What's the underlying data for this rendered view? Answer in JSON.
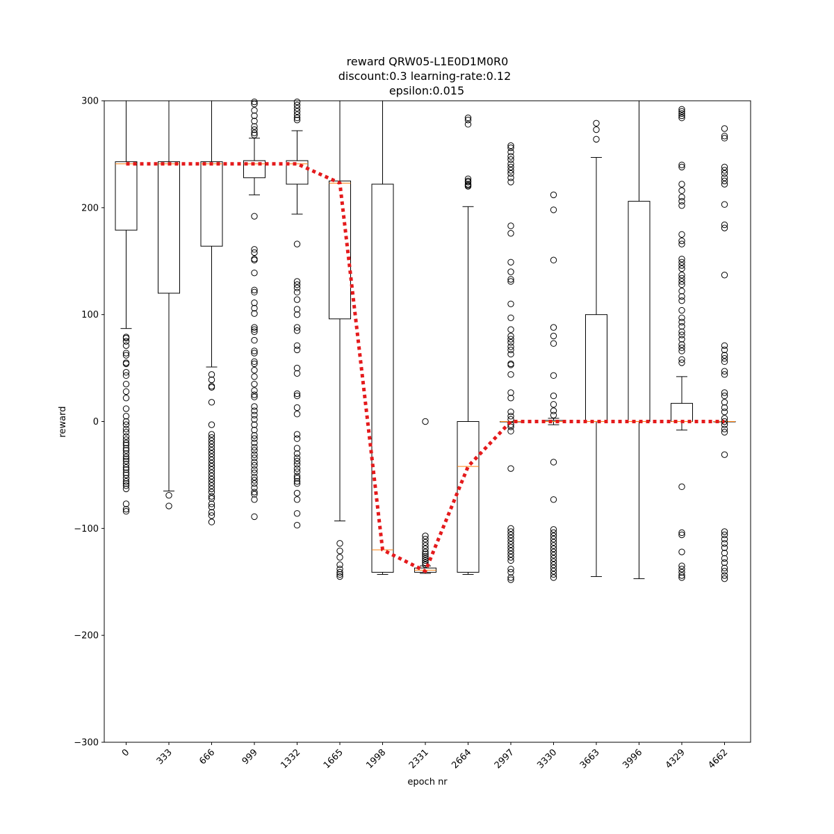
{
  "chart_data": {
    "type": "box",
    "title_lines": [
      "reward QRW05-L1E0D1M0R0",
      "discount:0.3 learning-rate:0.12",
      "epsilon:0.015"
    ],
    "xlabel": "epoch nr",
    "ylabel": "reward",
    "ylim": [
      -300,
      300
    ],
    "yticks": [
      -300,
      -200,
      -100,
      0,
      100,
      200,
      300
    ],
    "grid": false,
    "colors": {
      "box": "#000000",
      "median": "#ff7f0e",
      "mean_line": "#e41a1c"
    },
    "categories": [
      "0",
      "333",
      "666",
      "999",
      "1332",
      "1665",
      "1998",
      "2331",
      "2664",
      "2997",
      "3330",
      "3663",
      "3996",
      "4329",
      "4662"
    ],
    "boxes": [
      {
        "x": "0",
        "whisker_low": 87,
        "q1": 179,
        "median": 241,
        "q3": 243,
        "whisker_high": 300,
        "outliers": [
          79,
          78,
          75,
          71,
          64,
          62,
          55,
          54,
          46,
          43,
          35,
          28,
          22,
          12,
          5,
          0,
          -3,
          -7,
          -10,
          -14,
          -17,
          -20,
          -22,
          -25,
          -27,
          -30,
          -33,
          -35,
          -37,
          -40,
          -43,
          -45,
          -48,
          -50,
          -53,
          -56,
          -58,
          -60,
          -63,
          -77,
          -82,
          -84
        ]
      },
      {
        "x": "333",
        "whisker_low": -65,
        "q1": 120,
        "median": 241,
        "q3": 243,
        "whisker_high": 300,
        "outliers": [
          -69,
          -79
        ]
      },
      {
        "x": "666",
        "whisker_low": 51,
        "q1": 164,
        "median": 241,
        "q3": 243,
        "whisker_high": 300,
        "outliers": [
          44,
          39,
          33,
          32,
          18,
          -3,
          -12,
          -15,
          -18,
          -21,
          -24,
          -27,
          -30,
          -33,
          -36,
          -39,
          -42,
          -45,
          -48,
          -51,
          -54,
          -57,
          -60,
          -63,
          -66,
          -70,
          -72,
          -77,
          -80,
          -85,
          -88,
          -94
        ]
      },
      {
        "x": "999",
        "whisker_low": 212,
        "q1": 228,
        "median": 241,
        "q3": 244,
        "whisker_high": 265,
        "outliers": [
          299,
          297,
          291,
          286,
          281,
          276,
          273,
          270,
          268,
          192,
          161,
          158,
          152,
          151,
          139,
          123,
          121,
          111,
          106,
          101,
          88,
          86,
          84,
          76,
          66,
          64,
          56,
          54,
          48,
          42,
          35,
          29,
          25,
          23,
          14,
          10,
          6,
          2,
          -3,
          -8,
          -13,
          -16,
          -20,
          -24,
          -27,
          -31,
          -34,
          -38,
          -41,
          -45,
          -48,
          -52,
          -55,
          -58,
          -62,
          -66,
          -68,
          -73,
          -89
        ]
      },
      {
        "x": "1332",
        "whisker_low": 194,
        "q1": 222,
        "median": 241,
        "q3": 244,
        "whisker_high": 272,
        "outliers": [
          299,
          296,
          293,
          290,
          287,
          284,
          282,
          166,
          131,
          128,
          125,
          121,
          114,
          105,
          100,
          88,
          85,
          71,
          67,
          50,
          45,
          26,
          24,
          13,
          7,
          -12,
          -16,
          -25,
          -30,
          -34,
          -37,
          -40,
          -44,
          -47,
          -51,
          -53,
          -56,
          -58,
          -67,
          -73,
          -86,
          -97
        ]
      },
      {
        "x": "1665",
        "whisker_low": -93,
        "q1": 96,
        "median": 223,
        "q3": 225,
        "whisker_high": 300,
        "outliers": [
          -114,
          -121,
          -127,
          -134,
          -138,
          -141,
          -143,
          -145
        ]
      },
      {
        "x": "1998",
        "whisker_low": -143,
        "q1": -141,
        "median": -120,
        "q3": 222,
        "whisker_high": 300,
        "outliers": []
      },
      {
        "x": "2331",
        "whisker_low": -142,
        "q1": -141,
        "median": -139,
        "q3": -137,
        "whisker_high": -135,
        "outliers": [
          0,
          -107,
          -110,
          -113,
          -116,
          -119,
          -122,
          -124,
          -126,
          -128,
          -130,
          -132,
          -134
        ]
      },
      {
        "x": "2664",
        "whisker_low": -143,
        "q1": -141,
        "median": -42,
        "q3": 0,
        "whisker_high": 201,
        "outliers": [
          284,
          282,
          278,
          227,
          225,
          224,
          222,
          221,
          220
        ]
      },
      {
        "x": "2997",
        "whisker_low": 0,
        "q1": 0,
        "median": 0,
        "q3": 0,
        "whisker_high": 0,
        "outliers": [
          258,
          256,
          252,
          248,
          245,
          241,
          238,
          235,
          232,
          228,
          224,
          183,
          176,
          149,
          140,
          133,
          131,
          110,
          97,
          86,
          80,
          77,
          74,
          70,
          67,
          63,
          54,
          53,
          44,
          27,
          22,
          9,
          5,
          2,
          -3,
          -5,
          -9,
          -44,
          -100,
          -103,
          -106,
          -109,
          -112,
          -115,
          -118,
          -121,
          -124,
          -127,
          -130,
          -138,
          -141,
          -146,
          -148
        ]
      },
      {
        "x": "3330",
        "whisker_low": -3,
        "q1": 0,
        "median": 0,
        "q3": 1,
        "whisker_high": 3,
        "outliers": [
          212,
          198,
          151,
          88,
          80,
          73,
          43,
          24,
          16,
          10,
          6,
          -38,
          -73,
          -101,
          -104,
          -107,
          -110,
          -113,
          -116,
          -119,
          -122,
          -125,
          -128,
          -131,
          -134,
          -137,
          -140,
          -143,
          -146
        ]
      },
      {
        "x": "3663",
        "whisker_low": -145,
        "q1": 0,
        "median": 0,
        "q3": 100,
        "whisker_high": 247,
        "outliers": [
          279,
          273,
          264
        ]
      },
      {
        "x": "3996",
        "whisker_low": -147,
        "q1": 0,
        "median": 0,
        "q3": 206,
        "whisker_high": 300,
        "outliers": []
      },
      {
        "x": "4329",
        "whisker_low": -8,
        "q1": 0,
        "median": 0,
        "q3": 17,
        "whisker_high": 42,
        "outliers": [
          292,
          290,
          288,
          286,
          284,
          240,
          238,
          222,
          216,
          210,
          206,
          202,
          175,
          169,
          166,
          152,
          149,
          146,
          143,
          137,
          134,
          131,
          128,
          122,
          117,
          113,
          104,
          97,
          93,
          89,
          84,
          81,
          77,
          72,
          69,
          66,
          58,
          55,
          -61,
          -104,
          -106,
          -122,
          -135,
          -138,
          -141,
          -144,
          -146
        ]
      },
      {
        "x": "4662",
        "whisker_low": 0,
        "q1": 0,
        "median": 0,
        "q3": 0,
        "whisker_high": 0,
        "outliers": [
          274,
          267,
          265,
          238,
          235,
          232,
          228,
          225,
          222,
          203,
          184,
          181,
          137,
          71,
          67,
          62,
          59,
          56,
          47,
          44,
          27,
          24,
          18,
          13,
          9,
          3,
          0,
          -3,
          -7,
          -10,
          -31,
          -103,
          -106,
          -110,
          -114,
          -118,
          -123,
          -128,
          -132,
          -137,
          -140,
          -144,
          -147
        ]
      }
    ],
    "mean_line": [
      241,
      241,
      241,
      241,
      241,
      223,
      -120,
      -140,
      -42,
      0,
      0,
      0,
      0,
      0,
      0
    ]
  }
}
